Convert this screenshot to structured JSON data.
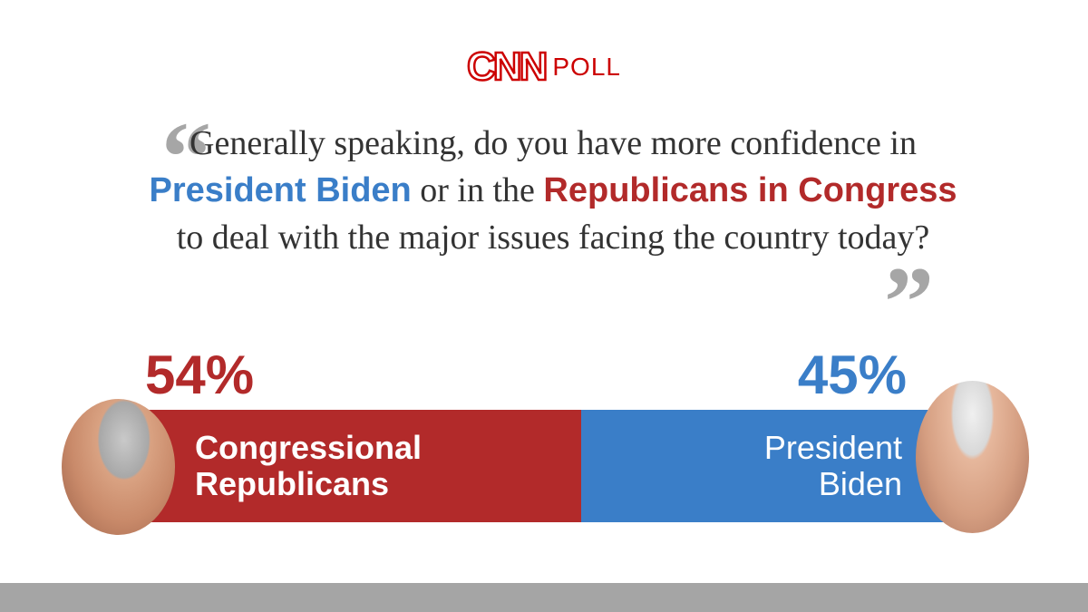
{
  "header": {
    "logo_brand": "CNN",
    "logo_poll": "POLL"
  },
  "question": {
    "part1": "Generally speaking, do you have more confidence in ",
    "highlight_blue": "President Biden",
    "part2": " or in the ",
    "highlight_red": "Republicans in Congress",
    "part3": " to deal with the major issues facing the country today?"
  },
  "colors": {
    "republican": "#b22a2a",
    "democrat": "#3a7ec8",
    "brand": "#cc0000"
  },
  "chart_data": {
    "type": "bar",
    "orientation": "horizontal-stacked",
    "categories": [
      "Congressional Republicans",
      "President Biden"
    ],
    "values": [
      54,
      45
    ],
    "value_labels": [
      "54%",
      "45%"
    ],
    "bar_labels": [
      [
        "Congressional",
        "Republicans"
      ],
      [
        "President",
        "Biden"
      ]
    ]
  }
}
